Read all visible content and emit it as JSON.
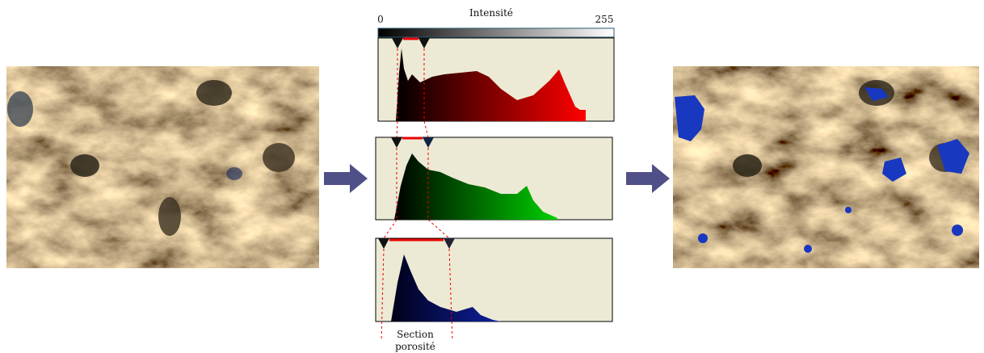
{
  "header": {
    "intensity_label": "Intensité",
    "min_label": 0,
    "max_label": 255
  },
  "annotation": {
    "line1": "Section",
    "line2": "porosité"
  }
}
